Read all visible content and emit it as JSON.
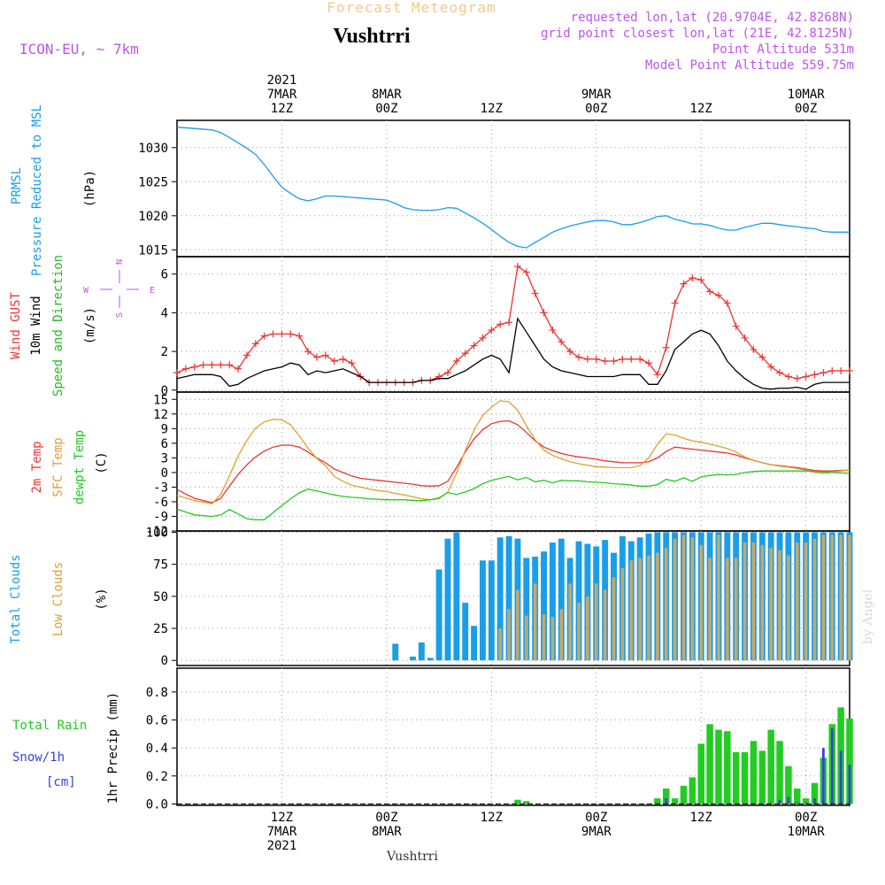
{
  "header": {
    "super_title": "Forecast Meteogram",
    "location": "Vushtrri",
    "model": "ICON-EU, ~ 7km",
    "requested": "requested lon,lat (20.9704E, 42.8268N)",
    "closest": "grid point closest lon,lat (21E, 42.8125N)",
    "point_altitude": "Point Altitude 531m",
    "model_altitude": "Model Point Altitude 559.75m",
    "footer_location": "Vushtrri",
    "watermark": "by Angel"
  },
  "colors": {
    "pressure": "#1a9ee8",
    "gust": "#ee3333",
    "wind": "#000000",
    "dir": "#22bb22",
    "temp2m": "#ee3333",
    "sfc": "#e0a030",
    "dewpt": "#22cc22",
    "total_clouds": "#1a9ee8",
    "low_clouds": "#c8a868",
    "rain": "#22cc22",
    "snow": "#3344dd",
    "compass": "#bb55ee",
    "header_purple": "#bb55ee",
    "super_title": "#f4c888"
  },
  "time_axis": {
    "top_labels": [
      {
        "t": 12,
        "lines": [
          "2021",
          "7MAR",
          "12Z"
        ]
      },
      {
        "t": 24,
        "lines": [
          "8MAR",
          "00Z"
        ]
      },
      {
        "t": 36,
        "lines": [
          "12Z"
        ]
      },
      {
        "t": 48,
        "lines": [
          "9MAR",
          "00Z"
        ]
      },
      {
        "t": 60,
        "lines": [
          "12Z"
        ]
      },
      {
        "t": 72,
        "lines": [
          "10MAR",
          "00Z"
        ]
      }
    ],
    "bottom_labels": [
      {
        "t": 12,
        "lines": [
          "12Z",
          "7MAR",
          "2021"
        ]
      },
      {
        "t": 24,
        "lines": [
          "00Z",
          "8MAR"
        ]
      },
      {
        "t": 36,
        "lines": [
          "12Z"
        ]
      },
      {
        "t": 48,
        "lines": [
          "00Z",
          "9MAR"
        ]
      },
      {
        "t": 60,
        "lines": [
          "12Z"
        ]
      },
      {
        "t": 72,
        "lines": [
          "00Z",
          "10MAR"
        ]
      }
    ],
    "range_hours": [
      0,
      77
    ]
  },
  "chart_data": [
    {
      "type": "line",
      "panel": "pressure",
      "title": "PRMSL Pressure Reduced to MSL",
      "ylabels": [
        "PRMSL",
        "Pressure Reduced to MSL"
      ],
      "unit": "(hPa)",
      "ylim": [
        1014,
        1034
      ],
      "yticks": [
        1015,
        1020,
        1025,
        1030
      ],
      "x": [
        0,
        2,
        4,
        5,
        6,
        7,
        8,
        9,
        10,
        11,
        12,
        13,
        14,
        15,
        16,
        17,
        18,
        19,
        20,
        21,
        22,
        23,
        24,
        25,
        26,
        27,
        28,
        29,
        30,
        31,
        32,
        33,
        34,
        35,
        36,
        37,
        38,
        39,
        40,
        41,
        42,
        43,
        44,
        45,
        46,
        47,
        48,
        49,
        50,
        51,
        52,
        53,
        54,
        55,
        56,
        57,
        58,
        59,
        60,
        61,
        62,
        63,
        64,
        65,
        66,
        67,
        68,
        69,
        70,
        71,
        72,
        73,
        74,
        75,
        76,
        77
      ],
      "series": [
        {
          "name": "PRMSL",
          "values": [
            1033,
            1032.8,
            1032.6,
            1032.2,
            1031.5,
            1030.7,
            1029.9,
            1029,
            1027.5,
            1025.8,
            1024.2,
            1023.3,
            1022.5,
            1022.2,
            1022.5,
            1022.9,
            1022.9,
            1022.8,
            1022.7,
            1022.6,
            1022.5,
            1022.4,
            1022.3,
            1021.8,
            1021.2,
            1020.9,
            1020.8,
            1020.8,
            1020.9,
            1021.2,
            1021.1,
            1020.4,
            1019.7,
            1018.9,
            1018,
            1017,
            1016.1,
            1015.5,
            1015.3,
            1016.1,
            1016.8,
            1017.6,
            1018.1,
            1018.5,
            1018.8,
            1019.1,
            1019.3,
            1019.3,
            1019.1,
            1018.7,
            1018.7,
            1019,
            1019.4,
            1019.9,
            1020,
            1019.5,
            1019.2,
            1018.8,
            1018.8,
            1018.6,
            1018.2,
            1017.9,
            1017.9,
            1018.3,
            1018.6,
            1018.9,
            1018.9,
            1018.7,
            1018.5,
            1018.4,
            1018.2,
            1018.1,
            1017.7,
            1017.6,
            1017.6,
            1017.6
          ]
        }
      ]
    },
    {
      "type": "line",
      "panel": "wind",
      "title": "Wind GUST 10m Wind Speed and Direction",
      "ylabels": [
        "Wind GUST",
        "10m Wind",
        "Speed and Direction"
      ],
      "unit": "(m/s)",
      "compass": {
        "n": "N",
        "s": "S",
        "w": "W",
        "e": "E"
      },
      "ylim": [
        -0.1,
        6.9
      ],
      "yticks": [
        0,
        2,
        4,
        6
      ],
      "x": [
        0,
        1,
        2,
        3,
        4,
        5,
        6,
        7,
        8,
        9,
        10,
        11,
        12,
        13,
        14,
        15,
        16,
        17,
        18,
        19,
        20,
        21,
        22,
        23,
        24,
        25,
        26,
        27,
        28,
        29,
        30,
        31,
        32,
        33,
        34,
        35,
        36,
        37,
        38,
        39,
        40,
        41,
        42,
        43,
        44,
        45,
        46,
        47,
        48,
        49,
        50,
        51,
        52,
        53,
        54,
        55,
        56,
        57,
        58,
        59,
        60,
        61,
        62,
        63,
        64,
        65,
        66,
        67,
        68,
        69,
        70,
        71,
        72,
        73,
        74,
        75,
        76,
        77
      ],
      "series": [
        {
          "name": "Wind GUST",
          "values": [
            0.9,
            1.1,
            1.2,
            1.3,
            1.3,
            1.3,
            1.3,
            1.1,
            1.8,
            2.4,
            2.8,
            2.9,
            2.9,
            2.9,
            2.8,
            2.0,
            1.7,
            1.8,
            1.5,
            1.6,
            1.4,
            0.7,
            0.4,
            0.4,
            0.4,
            0.4,
            0.4,
            0.4,
            0.5,
            0.5,
            0.7,
            0.9,
            1.5,
            1.9,
            2.3,
            2.7,
            3.1,
            3.4,
            3.5,
            6.4,
            6.1,
            5.0,
            4.0,
            3.1,
            2.5,
            2.0,
            1.7,
            1.6,
            1.6,
            1.5,
            1.5,
            1.6,
            1.6,
            1.6,
            1.4,
            0.8,
            2.2,
            4.5,
            5.5,
            5.8,
            5.7,
            5.1,
            4.9,
            4.5,
            3.3,
            2.7,
            2.1,
            1.7,
            1.2,
            0.9,
            0.7,
            0.6,
            0.7,
            0.8,
            0.9,
            1.0,
            1.0,
            1.0
          ]
        },
        {
          "name": "10m Wind",
          "values": [
            0.6,
            0.7,
            0.8,
            0.8,
            0.8,
            0.7,
            0.2,
            0.3,
            0.6,
            0.8,
            1.0,
            1.1,
            1.2,
            1.4,
            1.3,
            0.8,
            1.0,
            0.9,
            1.0,
            1.1,
            0.9,
            0.7,
            0.4,
            0.4,
            0.4,
            0.4,
            0.4,
            0.4,
            0.5,
            0.5,
            0.6,
            0.6,
            0.8,
            1.0,
            1.3,
            1.6,
            1.8,
            1.6,
            0.9,
            3.7,
            3.0,
            2.3,
            1.6,
            1.2,
            1.0,
            0.9,
            0.8,
            0.7,
            0.7,
            0.7,
            0.7,
            0.8,
            0.8,
            0.8,
            0.3,
            0.3,
            1.0,
            2.1,
            2.5,
            2.9,
            3.1,
            2.9,
            2.3,
            1.5,
            1.0,
            0.6,
            0.3,
            0.1,
            0.05,
            0.1,
            0.1,
            0.15,
            0.05,
            0.3,
            0.4,
            0.4,
            0.4,
            0.4
          ]
        }
      ]
    },
    {
      "type": "line",
      "panel": "temperature",
      "title": "2m Temp SFC Temp dewpt Temp",
      "ylabels": [
        "2m Temp",
        "SFC Temp",
        "dewpt Temp"
      ],
      "unit": "(C)",
      "ylim": [
        -12,
        16.5
      ],
      "yticks": [
        -12,
        -9,
        -6,
        -3,
        0,
        3,
        6,
        9,
        12,
        15
      ],
      "x": [
        0,
        2,
        4,
        5,
        6,
        7,
        8,
        9,
        10,
        11,
        12,
        13,
        14,
        15,
        16,
        17,
        18,
        19,
        20,
        21,
        22,
        23,
        24,
        25,
        26,
        27,
        28,
        29,
        30,
        31,
        32,
        33,
        34,
        35,
        36,
        37,
        38,
        39,
        40,
        41,
        42,
        43,
        44,
        45,
        46,
        47,
        48,
        49,
        50,
        51,
        52,
        53,
        54,
        55,
        56,
        57,
        58,
        59,
        60,
        61,
        62,
        63,
        64,
        65,
        66,
        67,
        68,
        69,
        70,
        71,
        72,
        73,
        74,
        75,
        76,
        77
      ],
      "series": [
        {
          "name": "2m Temp",
          "values": [
            -3.5,
            -5.3,
            -6.2,
            -5.3,
            -2.8,
            -0.4,
            1.6,
            3.2,
            4.4,
            5.2,
            5.6,
            5.6,
            5.2,
            4.2,
            3.0,
            2.0,
            0.7,
            0.0,
            -0.7,
            -1.2,
            -1.4,
            -1.6,
            -1.8,
            -2.0,
            -2.2,
            -2.4,
            -2.7,
            -2.8,
            -2.7,
            -1.8,
            1.0,
            4.2,
            6.9,
            8.8,
            10.0,
            10.5,
            10.6,
            9.8,
            8.2,
            6.5,
            5.2,
            4.5,
            3.9,
            3.5,
            3.2,
            3.0,
            2.7,
            2.4,
            2.2,
            2.0,
            2.0,
            2.0,
            2.2,
            3.0,
            4.3,
            5.2,
            5.0,
            4.8,
            4.6,
            4.4,
            4.2,
            4.0,
            3.6,
            3.0,
            2.5,
            2.0,
            1.6,
            1.4,
            1.2,
            1.0,
            0.7,
            0.4,
            0.3,
            0.3,
            0.4,
            0.5
          ]
        },
        {
          "name": "SFC Temp",
          "values": [
            -4.7,
            -5.8,
            -6.4,
            -4.5,
            -0.7,
            3.4,
            6.6,
            9.1,
            10.4,
            10.9,
            10.8,
            9.8,
            7.5,
            5.0,
            2.9,
            1.4,
            -0.8,
            -1.8,
            -2.6,
            -3.0,
            -3.4,
            -3.7,
            -3.9,
            -4.3,
            -4.6,
            -5.0,
            -5.4,
            -5.6,
            -5.4,
            -4.0,
            -0.2,
            4.5,
            8.7,
            11.7,
            13.4,
            14.7,
            14.5,
            12.8,
            9.6,
            6.7,
            4.6,
            3.5,
            2.8,
            2.2,
            1.8,
            1.5,
            1.2,
            1.1,
            1.0,
            1.0,
            1.0,
            1.4,
            3.0,
            5.8,
            7.9,
            7.7,
            7.0,
            6.5,
            6.2,
            5.8,
            5.4,
            4.9,
            4.2,
            3.2,
            2.5,
            2.0,
            1.6,
            1.3,
            1.1,
            0.8,
            0.5,
            0.0,
            -0.2,
            0.0,
            0.3,
            0.5
          ]
        },
        {
          "name": "dewpt Temp",
          "values": [
            -7.5,
            -8.7,
            -9.0,
            -8.7,
            -7.6,
            -8.5,
            -9.5,
            -9.7,
            -9.7,
            -8.2,
            -6.8,
            -5.4,
            -4.2,
            -3.4,
            -3.8,
            -4.2,
            -4.6,
            -4.9,
            -5.1,
            -5.2,
            -5.4,
            -5.5,
            -5.6,
            -5.6,
            -5.6,
            -5.7,
            -5.8,
            -5.6,
            -5.2,
            -4.1,
            -4.5,
            -4.0,
            -3.3,
            -2.3,
            -1.6,
            -1.2,
            -0.8,
            -1.5,
            -1.0,
            -1.9,
            -1.6,
            -2.1,
            -1.6,
            -1.7,
            -1.7,
            -1.9,
            -2.0,
            -2.1,
            -2.3,
            -2.4,
            -2.6,
            -2.8,
            -2.8,
            -2.5,
            -1.4,
            -1.8,
            -1.1,
            -1.8,
            -0.9,
            -0.6,
            -0.4,
            -0.5,
            -0.4,
            0.0,
            0.2,
            0.3,
            0.3,
            0.3,
            0.3,
            0.3,
            0.3,
            0.2,
            0.1,
            0.0,
            -0.1,
            -0.2
          ]
        }
      ]
    },
    {
      "type": "bar",
      "panel": "clouds",
      "title": "Total Clouds Low Clouds",
      "ylabels": [
        "Total Clouds",
        "Low Clouds"
      ],
      "unit": "(%)",
      "ylim": [
        -4,
        101
      ],
      "yticks": [
        0,
        25,
        50,
        75,
        100
      ],
      "start_hour": 25,
      "series": [
        {
          "name": "Total Clouds",
          "values": [
            13,
            0,
            3,
            14,
            2,
            71,
            95,
            100,
            45,
            27,
            78,
            78,
            96,
            97,
            95,
            80,
            81,
            85,
            92,
            95,
            80,
            93,
            91,
            89,
            94,
            84,
            97,
            93,
            96,
            99,
            100,
            100,
            100,
            100,
            100,
            100,
            100,
            100,
            100,
            100,
            100,
            100,
            100,
            100,
            100,
            100,
            100,
            100,
            100,
            100,
            100,
            100,
            100,
            100
          ]
        },
        {
          "name": "Low Clouds",
          "values": [
            0,
            0,
            0,
            0,
            0,
            0,
            0,
            0,
            0,
            0,
            0,
            0,
            25,
            40,
            55,
            35,
            60,
            36,
            34,
            40,
            60,
            45,
            50,
            60,
            55,
            65,
            72,
            78,
            80,
            82,
            84,
            88,
            95,
            98,
            96,
            90,
            80,
            98,
            80,
            80,
            92,
            92,
            90,
            88,
            86,
            82,
            92,
            92,
            95,
            98,
            98,
            98,
            98,
            98
          ]
        }
      ]
    },
    {
      "type": "bar",
      "panel": "precipitation",
      "title": "Total Rain Snow/1h [cm]",
      "ylabels": [
        "Total Rain",
        "Snow/1h",
        "[cm]"
      ],
      "unit": "1hr Precip (mm)",
      "ylim": [
        -0.01,
        0.97
      ],
      "yticks": [
        0,
        0.2,
        0.4,
        0.6,
        0.8
      ],
      "start_hour": 39,
      "series": [
        {
          "name": "Total Rain",
          "values": [
            0.03,
            0.02,
            0,
            0,
            0,
            0,
            0,
            0,
            0,
            0,
            0,
            0,
            0,
            0,
            0,
            0,
            0.04,
            0.11,
            0.04,
            0.13,
            0.19,
            0.43,
            0.57,
            0.53,
            0.52,
            0.37,
            0.37,
            0.45,
            0.38,
            0.53,
            0.45,
            0.27,
            0.11,
            0.04,
            0.15,
            0.33,
            0.57,
            0.69,
            0.61,
            0.57
          ]
        },
        {
          "name": "Snow/1h",
          "values": [
            0,
            0,
            0,
            0,
            0,
            0,
            0,
            0,
            0,
            0,
            0,
            0,
            0,
            0,
            0,
            0,
            0,
            0.04,
            0,
            0,
            0,
            0,
            0,
            0,
            0,
            0,
            0,
            0,
            0,
            0,
            0.03,
            0.05,
            0.01,
            0.01,
            0.04,
            0.4,
            0.54,
            0.38,
            0.28,
            0
          ]
        }
      ]
    }
  ]
}
